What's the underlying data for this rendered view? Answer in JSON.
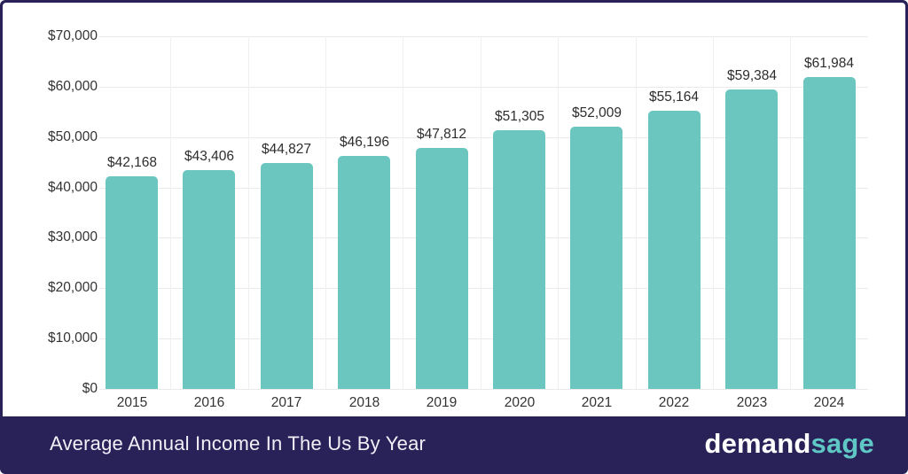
{
  "chart_data": {
    "type": "bar",
    "title": "Average Annual Income In The Us By Year",
    "categories": [
      "2015",
      "2016",
      "2017",
      "2018",
      "2019",
      "2020",
      "2021",
      "2022",
      "2023",
      "2024"
    ],
    "values": [
      42168,
      43406,
      44827,
      46196,
      47812,
      51305,
      52009,
      55164,
      59384,
      61984
    ],
    "value_labels": [
      "$42,168",
      "$43,406",
      "$44,827",
      "$46,196",
      "$47,812",
      "$51,305",
      "$52,009",
      "$55,164",
      "$59,384",
      "$61,984"
    ],
    "xlabel": "",
    "ylabel": "",
    "ylim": [
      0,
      70000
    ],
    "y_tick_interval": 10000,
    "y_tick_labels_top_to_bottom": [
      "$70,000",
      "$60,000",
      "$50,000",
      "$40,000",
      "$30,000",
      "$20,000",
      "$10,000",
      "$0"
    ],
    "grid": true,
    "legend": false,
    "bar_color": "#6bc6c0"
  },
  "footer": {
    "title": "Average Annual Income In The Us By Year",
    "brand_part1": "demand",
    "brand_part2": "sage"
  },
  "colors": {
    "frame_navy": "#292259",
    "bar_teal": "#6bc6c0",
    "brand_teal": "#5fc8c5",
    "gridline": "#eaeaea",
    "label_text": "#2d2d2d",
    "footer_text": "#f2eff7",
    "background": "#ffffff"
  }
}
